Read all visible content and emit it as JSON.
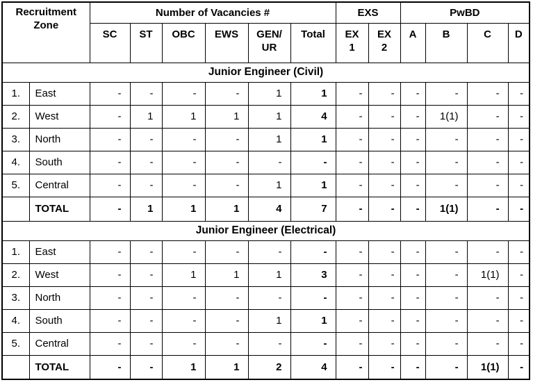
{
  "table": {
    "header": {
      "recruitment_zone": "Recruitment Zone",
      "vacancies_group": "Number of Vacancies #",
      "exs_group": "EXS",
      "pwbd_group": "PwBD",
      "sub_columns": [
        "SC",
        "ST",
        "OBC",
        "EWS",
        "GEN/\nUR",
        "Total",
        "EX\n1",
        "EX\n2",
        "A",
        "B",
        "C",
        "D"
      ]
    },
    "sections": [
      {
        "title": "Junior Engineer (Civil)",
        "rows": [
          {
            "sno": "1.",
            "zone": "East",
            "values": [
              "-",
              "-",
              "-",
              "-",
              "1",
              "1",
              "-",
              "-",
              "-",
              "-",
              "-",
              "-"
            ]
          },
          {
            "sno": "2.",
            "zone": "West",
            "values": [
              "-",
              "1",
              "1",
              "1",
              "1",
              "4",
              "-",
              "-",
              "-",
              "1(1)",
              "-",
              "-"
            ]
          },
          {
            "sno": "3.",
            "zone": "North",
            "values": [
              "-",
              "-",
              "-",
              "-",
              "1",
              "1",
              "-",
              "-",
              "-",
              "-",
              "-",
              "-"
            ]
          },
          {
            "sno": "4.",
            "zone": "South",
            "values": [
              "-",
              "-",
              "-",
              "-",
              "-",
              "-",
              "-",
              "-",
              "-",
              "-",
              "-",
              "-"
            ]
          },
          {
            "sno": "5.",
            "zone": "Central",
            "values": [
              "-",
              "-",
              "-",
              "-",
              "1",
              "1",
              "-",
              "-",
              "-",
              "-",
              "-",
              "-"
            ]
          }
        ],
        "total": {
          "label": "TOTAL",
          "values": [
            "-",
            "1",
            "1",
            "1",
            "4",
            "7",
            "-",
            "-",
            "-",
            "1(1)",
            "-",
            "-"
          ]
        }
      },
      {
        "title": "Junior Engineer (Electrical)",
        "rows": [
          {
            "sno": "1.",
            "zone": "East",
            "values": [
              "-",
              "-",
              "-",
              "-",
              "-",
              "-",
              "-",
              "-",
              "-",
              "-",
              "-",
              "-"
            ]
          },
          {
            "sno": "2.",
            "zone": "West",
            "values": [
              "-",
              "-",
              "1",
              "1",
              "1",
              "3",
              "-",
              "-",
              "-",
              "-",
              "1(1)",
              "-"
            ]
          },
          {
            "sno": "3.",
            "zone": "North",
            "values": [
              "-",
              "-",
              "-",
              "-",
              "-",
              "-",
              "-",
              "-",
              "-",
              "-",
              "-",
              "-"
            ]
          },
          {
            "sno": "4.",
            "zone": "South",
            "values": [
              "-",
              "-",
              "-",
              "-",
              "1",
              "1",
              "-",
              "-",
              "-",
              "-",
              "-",
              "-"
            ]
          },
          {
            "sno": "5.",
            "zone": "Central",
            "values": [
              "-",
              "-",
              "-",
              "-",
              "-",
              "-",
              "-",
              "-",
              "-",
              "-",
              "-",
              "-"
            ]
          }
        ],
        "total": {
          "label": "TOTAL",
          "values": [
            "-",
            "-",
            "1",
            "1",
            "2",
            "4",
            "-",
            "-",
            "-",
            "-",
            "1(1)",
            "-"
          ]
        }
      }
    ]
  }
}
